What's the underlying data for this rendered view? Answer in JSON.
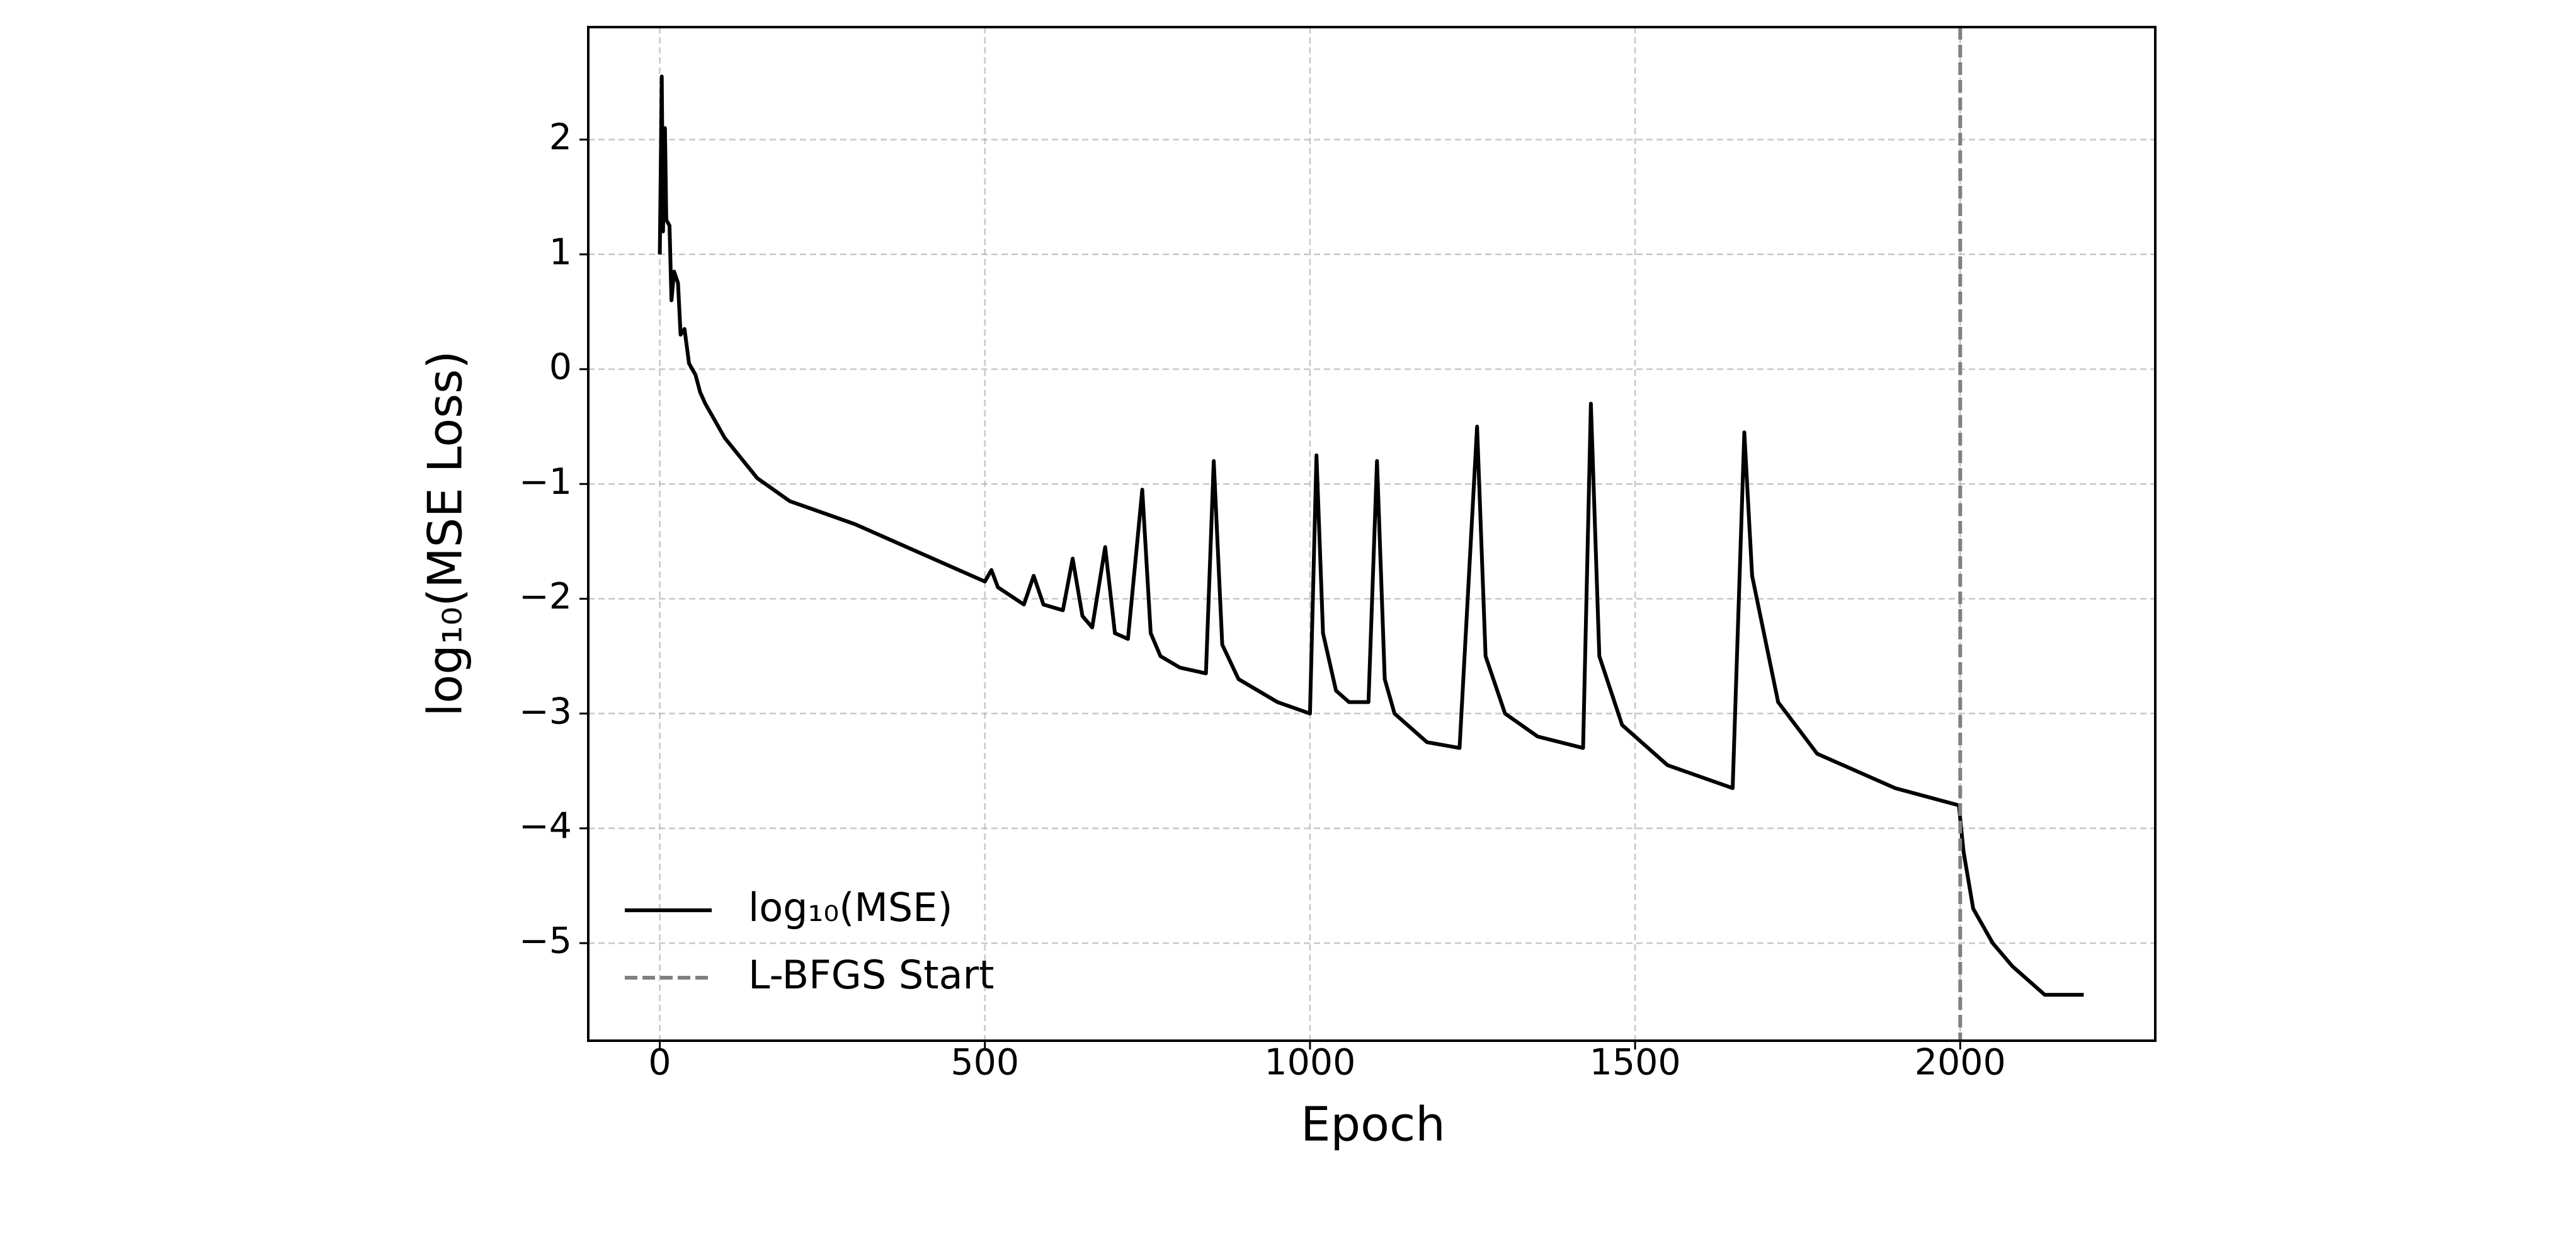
{
  "chart_data": {
    "type": "line",
    "x_label": "Epoch",
    "y_label": "log₁₀(MSE Loss)",
    "series": [
      {
        "name": "log₁₀(MSE)",
        "color": "#000000",
        "x": [
          0,
          3,
          5,
          8,
          10,
          15,
          18,
          22,
          28,
          32,
          38,
          45,
          55,
          62,
          70,
          100,
          150,
          200,
          300,
          400,
          500,
          510,
          520,
          560,
          575,
          590,
          620,
          635,
          650,
          665,
          685,
          700,
          720,
          742,
          755,
          770,
          800,
          840,
          852,
          865,
          890,
          950,
          1000,
          1010,
          1020,
          1040,
          1060,
          1090,
          1103,
          1115,
          1130,
          1180,
          1230,
          1257,
          1270,
          1300,
          1350,
          1420,
          1432,
          1445,
          1480,
          1550,
          1650,
          1668,
          1680,
          1720,
          1780,
          1900,
          1998,
          2005,
          2020,
          2050,
          2080,
          2130,
          2190
        ],
        "values": [
          1.0,
          2.55,
          1.2,
          2.1,
          1.3,
          1.25,
          0.6,
          0.85,
          0.75,
          0.3,
          0.35,
          0.05,
          -0.05,
          -0.2,
          -0.3,
          -0.6,
          -0.95,
          -1.15,
          -1.35,
          -1.6,
          -1.85,
          -1.75,
          -1.9,
          -2.05,
          -1.8,
          -2.05,
          -2.1,
          -1.65,
          -2.15,
          -2.25,
          -1.55,
          -2.3,
          -2.35,
          -1.05,
          -2.3,
          -2.5,
          -2.6,
          -2.65,
          -0.8,
          -2.4,
          -2.7,
          -2.9,
          -3.0,
          -0.75,
          -2.3,
          -2.8,
          -2.9,
          -2.9,
          -0.8,
          -2.7,
          -3.0,
          -3.25,
          -3.3,
          -0.5,
          -2.5,
          -3.0,
          -3.2,
          -3.3,
          -0.3,
          -2.5,
          -3.1,
          -3.45,
          -3.65,
          -0.55,
          -1.8,
          -2.9,
          -3.35,
          -3.65,
          -3.8,
          -4.2,
          -4.7,
          -5.0,
          -5.2,
          -5.45,
          -5.45
        ]
      }
    ],
    "vlines": [
      {
        "name": "L-BFGS Start",
        "x": 2000,
        "color": "#808080"
      }
    ],
    "xlim": [
      -110,
      2300
    ],
    "ylim": [
      -5.85,
      2.98
    ],
    "xticks": [
      0,
      500,
      1000,
      1500,
      2000
    ],
    "yticks": [
      {
        "value": -5,
        "label": "−5"
      },
      {
        "value": -4,
        "label": "−4"
      },
      {
        "value": -3,
        "label": "−3"
      },
      {
        "value": -2,
        "label": "−2"
      },
      {
        "value": -1,
        "label": "−1"
      },
      0,
      1,
      2
    ],
    "grid": true,
    "legend": "lower left"
  }
}
